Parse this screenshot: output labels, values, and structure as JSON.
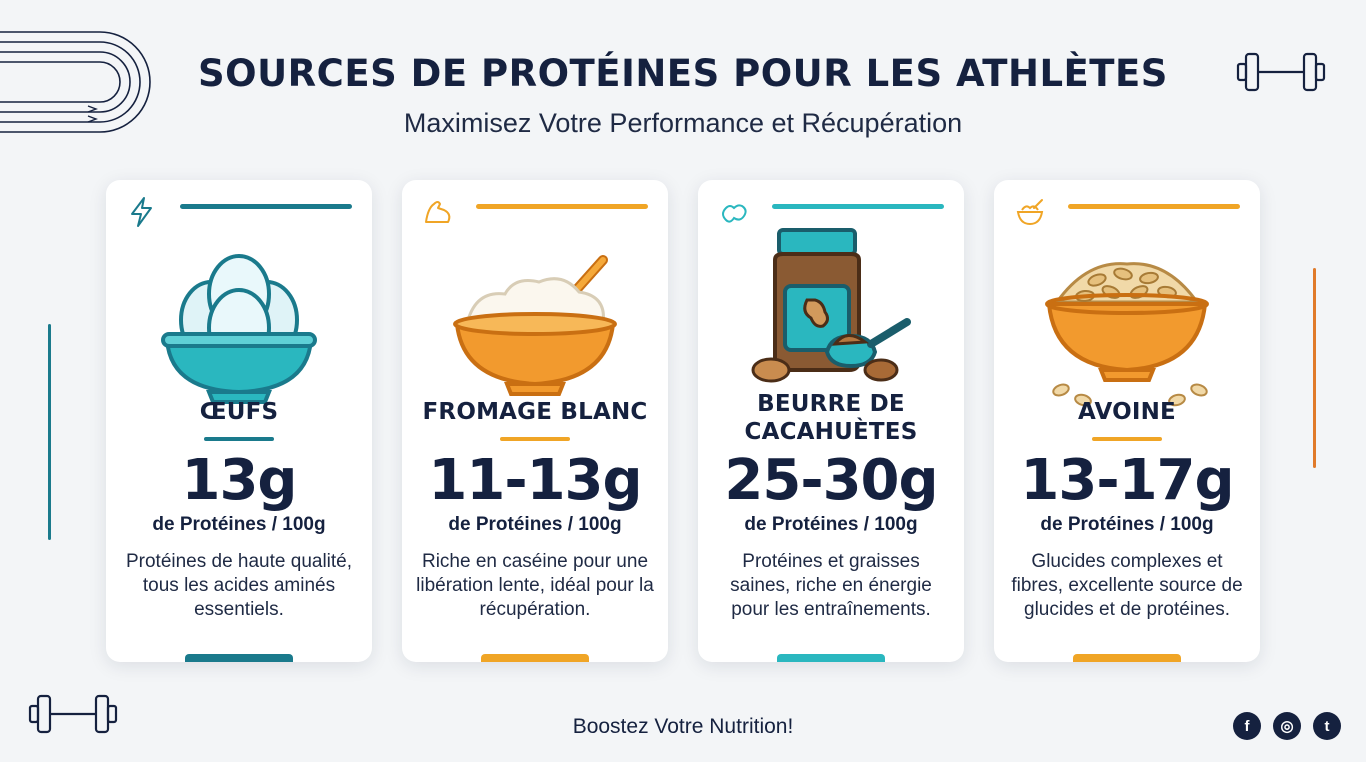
{
  "header": {
    "title": "SOURCES DE PROTÉINES POUR LES ATHLÈTES",
    "subtitle": "Maximisez Votre Performance et Récupération"
  },
  "cards": [
    {
      "name": "ŒUFS",
      "amount": "13g",
      "unit": "de Protéines / 100g",
      "description": "Protéines de haute qualité, tous les acides aminés essentiels.",
      "accent": "#1a7a8c",
      "corner_icon": "lightning-icon",
      "illustration": "eggs-bowl-illustration"
    },
    {
      "name": "FROMAGE BLANC",
      "amount": "11-13g",
      "unit": "de Protéines / 100g",
      "description": "Riche en caséine pour une libération lente, idéal pour la récupération.",
      "accent": "#f0a526",
      "corner_icon": "flexed-arm-icon",
      "illustration": "cheese-bowl-illustration"
    },
    {
      "name": "BEURRE DE CACAHUÈTES",
      "amount": "25-30g",
      "unit": "de Protéines / 100g",
      "description": "Protéines et graisses saines, riche en énergie pour les entraînements.",
      "accent": "#2ab7bf",
      "corner_icon": "peanut-icon",
      "illustration": "peanut-butter-jar-illustration"
    },
    {
      "name": "AVOINE",
      "amount": "13-17g",
      "unit": "de Protéines / 100g",
      "description": "Glucides complexes et fibres, excellente source de glucides et de protéines.",
      "accent": "#f0a526",
      "corner_icon": "oat-bowl-icon",
      "illustration": "oats-bowl-illustration"
    }
  ],
  "footer": {
    "tagline": "Boostez Votre Nutrition!"
  },
  "social": [
    {
      "icon": "facebook-icon",
      "glyph": "f"
    },
    {
      "icon": "instagram-icon",
      "glyph": "◎"
    },
    {
      "icon": "twitter-icon",
      "glyph": "t"
    }
  ],
  "colors": {
    "teal_dark": "#1a7a8c",
    "teal_light": "#2ab7bf",
    "orange": "#f0a526",
    "navy": "#15213f",
    "background": "#f3f5f7"
  }
}
